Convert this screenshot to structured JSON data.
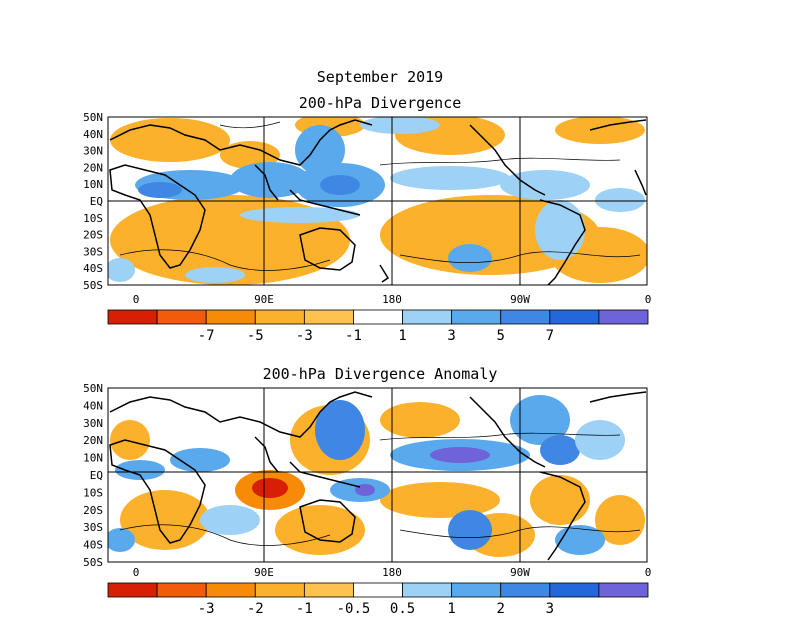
{
  "figure": {
    "title_line1": "September 2019",
    "title_line2": "200-hPa Divergence",
    "panel2_title": "200-hPa Divergence Anomaly"
  },
  "latitude_labels": [
    "50N",
    "40N",
    "30N",
    "20N",
    "10N",
    "EQ",
    "10S",
    "20S",
    "30S",
    "40S",
    "50S"
  ],
  "longitude_labels": [
    "0",
    "90E",
    "180",
    "90W",
    "0"
  ],
  "panel1": {
    "colorbar": {
      "colors": [
        "#d81e05",
        "#f15b0a",
        "#f78b07",
        "#fbb12b",
        "#fdc34e",
        "#ffffff",
        "#9dd1f5",
        "#5aa9ec",
        "#3f87e2",
        "#2367db",
        "#6e63d8"
      ],
      "labels": [
        "-7",
        "-5",
        "-3",
        "-1",
        "1",
        "3",
        "5",
        "7"
      ]
    }
  },
  "panel2": {
    "colorbar": {
      "colors": [
        "#d81e05",
        "#f15b0a",
        "#f78b07",
        "#fbb12b",
        "#fdc34e",
        "#ffffff",
        "#9dd1f5",
        "#5aa9ec",
        "#3f87e2",
        "#2367db",
        "#6e63d8"
      ],
      "labels": [
        "-3",
        "-2",
        "-1",
        "-0.5",
        "0.5",
        "1",
        "2",
        "3"
      ]
    }
  },
  "colors": {
    "positive_strong": "#2367db",
    "positive": "#5aa9ec",
    "negative": "#fbb12b",
    "negative_strong": "#d81e05",
    "neutral": "#ffffff"
  }
}
